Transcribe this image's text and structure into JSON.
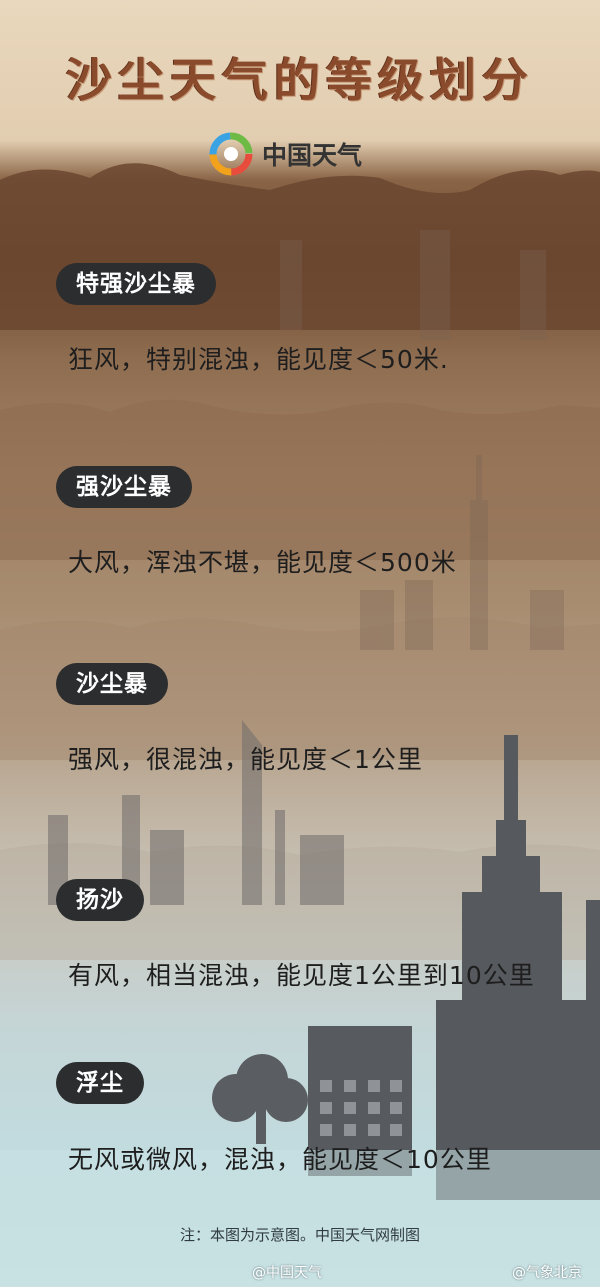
{
  "title": "沙尘天气的等级划分",
  "brand": {
    "name": "中国天气",
    "logo": "china-weather-logo"
  },
  "levels": [
    {
      "label": "特强沙尘暴",
      "desc": "狂风，特别混浊，能见度＜50米."
    },
    {
      "label": "强沙尘暴",
      "desc": "大风，浑浊不堪，能见度＜500米"
    },
    {
      "label": "沙尘暴",
      "desc": "强风，很混浊，能见度＜1公里"
    },
    {
      "label": "扬沙",
      "desc": "有风，相当混浊，能见度1公里到10公里"
    },
    {
      "label": "浮尘",
      "desc": "无风或微风，混浊，能见度＜10公里"
    }
  ],
  "footnote": "注：本图为示意图。中国天气网制图",
  "watermarks": {
    "left": "@中国天气",
    "right": "@气象北京"
  },
  "colors": {
    "badge": "#2b2d2f",
    "title": "#8a4a2c",
    "buildings": "#575a5e"
  }
}
